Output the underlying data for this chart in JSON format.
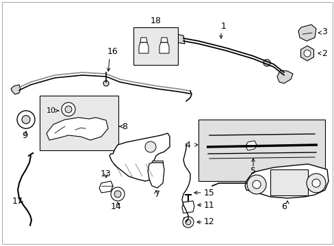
{
  "background_color": "#ffffff",
  "line_color": "#000000",
  "text_color": "#000000",
  "light_gray": "#d8d8d8",
  "box_gray": "#e8e8e8",
  "fig_width": 4.89,
  "fig_height": 3.6,
  "dpi": 100
}
